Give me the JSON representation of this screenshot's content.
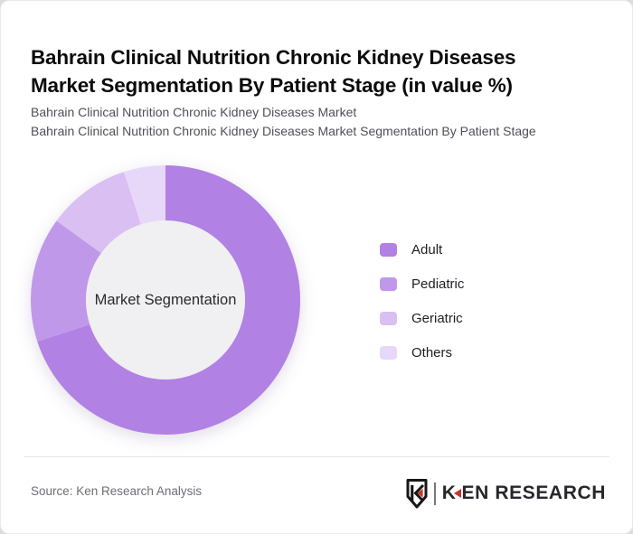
{
  "header": {
    "title": "Bahrain Clinical Nutrition Chronic Kidney Diseases Market Segmentation By Patient Stage (in value %)",
    "subtitle_line1": "Bahrain Clinical Nutrition Chronic Kidney Diseases Market",
    "subtitle_line2": "Bahrain Clinical Nutrition Chronic Kidney Diseases Market Segmentation By Patient Stage"
  },
  "chart_data": {
    "type": "pie",
    "variant": "donut",
    "title": "Bahrain Clinical Nutrition Chronic Kidney Diseases Market Segmentation By Patient Stage (in value %)",
    "center_label": "Market Segmentation",
    "categories": [
      "Adult",
      "Pediatric",
      "Geriatric",
      "Others"
    ],
    "values": [
      70,
      15,
      10,
      5
    ],
    "unit": "value %",
    "colors": [
      "#b181e4",
      "#c098e9",
      "#d9bff2",
      "#e7d8f9"
    ],
    "inner_circle_color": "#f0eff1",
    "start_angle_deg": 0,
    "direction": "clockwise",
    "legend_position": "right"
  },
  "footer": {
    "source_text": "Source: Ken Research Analysis",
    "brand": {
      "k_letter": "K",
      "rest_text": "EN RESEARCH",
      "accent_color": "#c0372f",
      "text_color": "#26262c"
    }
  }
}
